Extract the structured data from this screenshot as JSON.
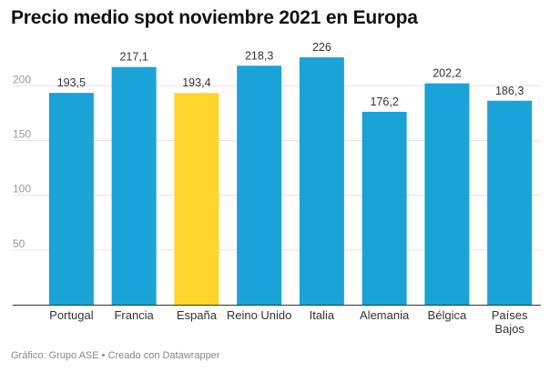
{
  "chart_data": {
    "type": "bar",
    "title": "Precio medio spot noviembre 2021 en Europa",
    "categories": [
      "Portugal",
      "Francia",
      "España",
      "Reino Unido",
      "Italia",
      "Alemania",
      "Bélgica",
      "Países Bajos"
    ],
    "values": [
      193.5,
      217.1,
      193.4,
      218.3,
      226,
      176.2,
      202.2,
      186.3
    ],
    "value_labels": [
      "193,5",
      "217,1",
      "193,4",
      "218,3",
      "226",
      "176,2",
      "202,2",
      "186,3"
    ],
    "yticks": [
      50,
      100,
      150,
      200
    ],
    "ylim": [
      0,
      226
    ],
    "grid": true,
    "xlabel": "",
    "ylabel": "",
    "colors": {
      "default": "#1aa3d6",
      "highlight": "#ffd42a",
      "highlight_category": "España"
    }
  },
  "footer": "Gráfico: Grupo ASE • Creado con Datawrapper"
}
